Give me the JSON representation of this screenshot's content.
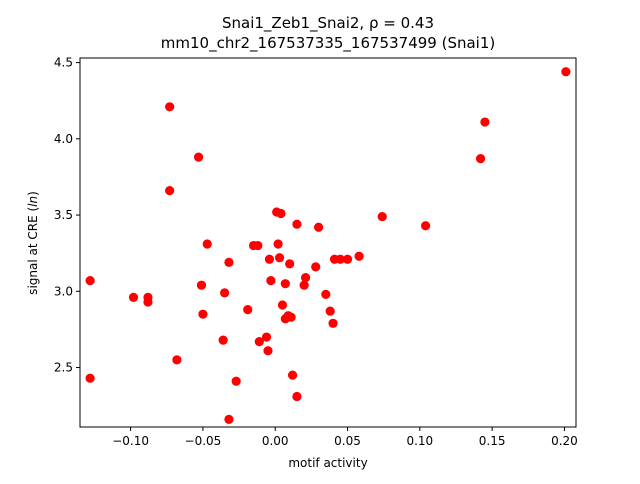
{
  "chart_data": {
    "type": "scatter",
    "title_line1": "Snai1_Zeb1_Snai2, ρ = 0.43",
    "title_line2": "mm10_chr2_167537335_167537499 (Snai1)",
    "xlabel": "motif activity",
    "ylabel": "signal at CRE (ln)",
    "xlim": [
      -0.135,
      0.208
    ],
    "ylim": [
      2.11,
      4.53
    ],
    "xticks": [
      -0.1,
      -0.05,
      0.0,
      0.05,
      0.1,
      0.15,
      0.2
    ],
    "xtick_labels": [
      "−0.10",
      "−0.05",
      "0.00",
      "0.05",
      "0.10",
      "0.15",
      "0.20"
    ],
    "yticks": [
      2.5,
      3.0,
      3.5,
      4.0,
      4.5
    ],
    "ytick_labels": [
      "2.5",
      "3.0",
      "3.5",
      "4.0",
      "4.5"
    ],
    "grid": false,
    "marker_color": "#ff0000",
    "points": [
      {
        "x": -0.128,
        "y": 3.07
      },
      {
        "x": -0.128,
        "y": 2.43
      },
      {
        "x": -0.098,
        "y": 2.96
      },
      {
        "x": -0.088,
        "y": 2.96
      },
      {
        "x": -0.088,
        "y": 2.93
      },
      {
        "x": -0.073,
        "y": 4.21
      },
      {
        "x": -0.073,
        "y": 3.66
      },
      {
        "x": -0.068,
        "y": 2.55
      },
      {
        "x": -0.053,
        "y": 3.88
      },
      {
        "x": -0.051,
        "y": 3.04
      },
      {
        "x": -0.05,
        "y": 2.85
      },
      {
        "x": -0.047,
        "y": 3.31
      },
      {
        "x": -0.036,
        "y": 2.68
      },
      {
        "x": -0.035,
        "y": 2.99
      },
      {
        "x": -0.032,
        "y": 3.19
      },
      {
        "x": -0.032,
        "y": 2.16
      },
      {
        "x": -0.027,
        "y": 2.41
      },
      {
        "x": -0.019,
        "y": 2.88
      },
      {
        "x": -0.015,
        "y": 3.3
      },
      {
        "x": -0.012,
        "y": 3.3
      },
      {
        "x": -0.011,
        "y": 2.67
      },
      {
        "x": -0.006,
        "y": 2.7
      },
      {
        "x": -0.005,
        "y": 2.61
      },
      {
        "x": -0.004,
        "y": 3.21
      },
      {
        "x": -0.003,
        "y": 3.07
      },
      {
        "x": 0.001,
        "y": 3.52
      },
      {
        "x": 0.002,
        "y": 3.31
      },
      {
        "x": 0.003,
        "y": 3.22
      },
      {
        "x": 0.004,
        "y": 3.51
      },
      {
        "x": 0.005,
        "y": 2.91
      },
      {
        "x": 0.007,
        "y": 2.82
      },
      {
        "x": 0.007,
        "y": 3.05
      },
      {
        "x": 0.009,
        "y": 2.84
      },
      {
        "x": 0.01,
        "y": 3.18
      },
      {
        "x": 0.011,
        "y": 2.83
      },
      {
        "x": 0.012,
        "y": 2.45
      },
      {
        "x": 0.015,
        "y": 3.44
      },
      {
        "x": 0.015,
        "y": 2.31
      },
      {
        "x": 0.02,
        "y": 3.04
      },
      {
        "x": 0.021,
        "y": 3.09
      },
      {
        "x": 0.028,
        "y": 3.16
      },
      {
        "x": 0.03,
        "y": 3.42
      },
      {
        "x": 0.035,
        "y": 2.98
      },
      {
        "x": 0.038,
        "y": 2.87
      },
      {
        "x": 0.04,
        "y": 2.79
      },
      {
        "x": 0.041,
        "y": 3.21
      },
      {
        "x": 0.045,
        "y": 3.21
      },
      {
        "x": 0.05,
        "y": 3.21
      },
      {
        "x": 0.058,
        "y": 3.23
      },
      {
        "x": 0.074,
        "y": 3.49
      },
      {
        "x": 0.104,
        "y": 3.43
      },
      {
        "x": 0.142,
        "y": 3.87
      },
      {
        "x": 0.145,
        "y": 4.11
      },
      {
        "x": 0.201,
        "y": 4.44
      }
    ]
  }
}
